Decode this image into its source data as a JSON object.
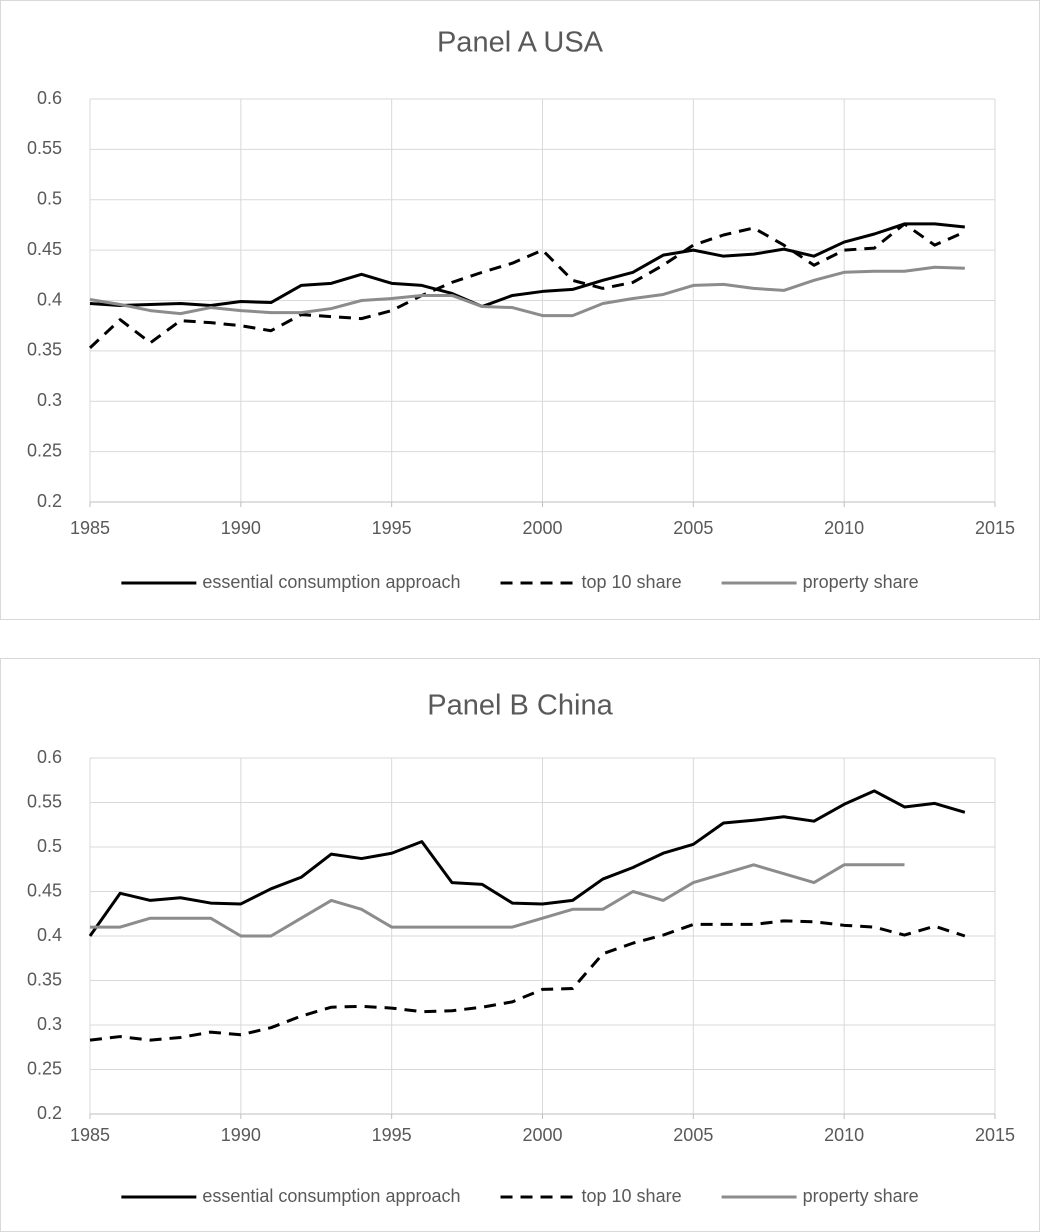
{
  "chart_data": [
    {
      "type": "line",
      "title": "Panel A USA",
      "x": [
        1985,
        1986,
        1987,
        1988,
        1989,
        1990,
        1991,
        1992,
        1993,
        1994,
        1995,
        1996,
        1997,
        1998,
        1999,
        2000,
        2001,
        2002,
        2003,
        2004,
        2005,
        2006,
        2007,
        2008,
        2009,
        2010,
        2011,
        2012,
        2013,
        2014
      ],
      "xlim": [
        1985,
        2015
      ],
      "xticks": [
        1985,
        1990,
        1995,
        2000,
        2005,
        2010,
        2015
      ],
      "ylim": [
        0.2,
        0.6
      ],
      "yticks": [
        0.2,
        0.25,
        0.3,
        0.35,
        0.4,
        0.45,
        0.5,
        0.55,
        0.6
      ],
      "grid": true,
      "legend": "bottom",
      "series": [
        {
          "name": "essential consumption approach",
          "color": "#000000",
          "line_style": "solid",
          "values": [
            0.397,
            0.395,
            0.396,
            0.397,
            0.395,
            0.399,
            0.398,
            0.415,
            0.417,
            0.426,
            0.417,
            0.415,
            0.407,
            0.394,
            0.405,
            0.409,
            0.411,
            0.42,
            0.428,
            0.445,
            0.45,
            0.444,
            0.446,
            0.451,
            0.444,
            0.458,
            0.466,
            0.476,
            0.476,
            0.473
          ]
        },
        {
          "name": "top 10 share",
          "color": "#000000",
          "line_style": "dashed",
          "values": [
            0.353,
            0.381,
            0.358,
            0.38,
            0.378,
            0.375,
            0.37,
            0.386,
            0.384,
            0.382,
            0.39,
            0.405,
            0.418,
            0.428,
            0.437,
            0.45,
            0.42,
            0.412,
            0.418,
            0.435,
            0.455,
            0.465,
            0.472,
            0.455,
            0.435,
            0.45,
            0.452,
            0.476,
            0.455,
            0.468
          ]
        },
        {
          "name": "property share",
          "color": "#8c8c8c",
          "line_style": "solid",
          "values": [
            0.401,
            0.396,
            0.39,
            0.387,
            0.393,
            0.39,
            0.388,
            0.388,
            0.392,
            0.4,
            0.402,
            0.405,
            0.405,
            0.394,
            0.393,
            0.385,
            0.385,
            0.397,
            0.402,
            0.406,
            0.415,
            0.416,
            0.412,
            0.41,
            0.42,
            0.428,
            0.429,
            0.429,
            0.433,
            0.432
          ]
        }
      ]
    },
    {
      "type": "line",
      "title": "Panel B China",
      "x": [
        1985,
        1986,
        1987,
        1988,
        1989,
        1990,
        1991,
        1992,
        1993,
        1994,
        1995,
        1996,
        1997,
        1998,
        1999,
        2000,
        2001,
        2002,
        2003,
        2004,
        2005,
        2006,
        2007,
        2008,
        2009,
        2010,
        2011,
        2012,
        2013,
        2014
      ],
      "xlim": [
        1985,
        2015
      ],
      "xticks": [
        1985,
        1990,
        1995,
        2000,
        2005,
        2010,
        2015
      ],
      "ylim": [
        0.2,
        0.6
      ],
      "yticks": [
        0.2,
        0.25,
        0.3,
        0.35,
        0.4,
        0.45,
        0.5,
        0.55,
        0.6
      ],
      "grid": true,
      "legend": "bottom",
      "series": [
        {
          "name": "essential consumption approach",
          "color": "#000000",
          "line_style": "solid",
          "values": [
            0.4,
            0.448,
            0.44,
            0.443,
            0.437,
            0.436,
            0.453,
            0.466,
            0.492,
            0.487,
            0.493,
            0.506,
            0.46,
            0.458,
            0.437,
            0.436,
            0.44,
            0.464,
            0.477,
            0.493,
            0.503,
            0.527,
            0.53,
            0.534,
            0.529,
            0.548,
            0.563,
            0.545,
            0.549,
            0.539
          ]
        },
        {
          "name": "top 10 share",
          "color": "#000000",
          "line_style": "dashed",
          "values": [
            0.283,
            0.287,
            0.283,
            0.286,
            0.292,
            0.289,
            0.297,
            0.31,
            0.32,
            0.321,
            0.319,
            0.315,
            0.316,
            0.32,
            0.326,
            0.34,
            0.341,
            0.38,
            0.392,
            0.401,
            0.413,
            0.413,
            0.413,
            0.417,
            0.416,
            0.412,
            0.41,
            0.401,
            0.411,
            0.4
          ]
        },
        {
          "name": "property share",
          "color": "#8c8c8c",
          "line_style": "solid",
          "values": [
            0.41,
            0.41,
            0.42,
            0.42,
            0.42,
            0.4,
            0.4,
            0.42,
            0.44,
            0.43,
            0.41,
            0.41,
            0.41,
            0.41,
            0.41,
            0.42,
            0.43,
            0.43,
            0.45,
            0.44,
            0.46,
            0.47,
            0.48,
            0.47,
            0.46,
            0.48,
            0.48,
            0.48,
            null,
            null
          ]
        }
      ]
    }
  ]
}
